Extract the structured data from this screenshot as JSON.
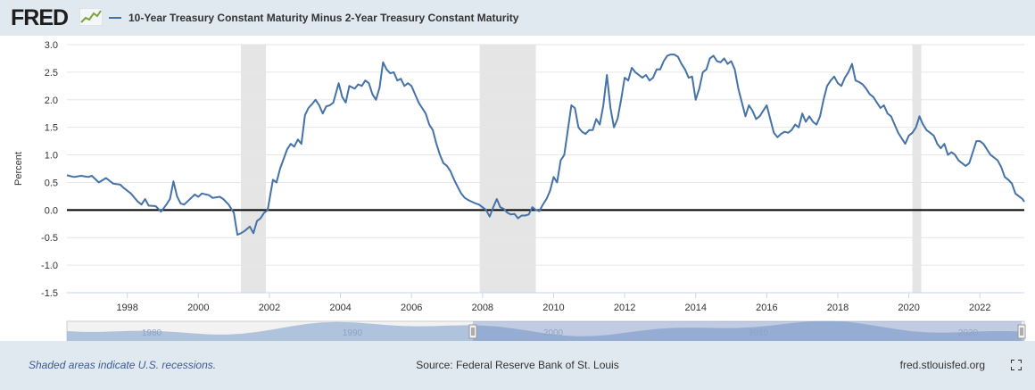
{
  "header": {
    "logo_text": "FRED",
    "logo_icon": "line-chart-icon"
  },
  "footer": {
    "recession_note": "Shaded areas indicate U.S. recessions.",
    "source": "Source: Federal Reserve Bank of St. Louis",
    "url": "fred.stlouisfed.org",
    "fullscreen_icon": "fullscreen-icon"
  },
  "colors": {
    "series": "#4572a7",
    "recession": "#e5e5e5",
    "zero_line": "#000000",
    "navigator_fill": "#9fb7d6"
  },
  "chart_data": {
    "type": "line",
    "title": "",
    "xlabel": "",
    "ylabel": "Percent",
    "ylim": [
      -1.5,
      3.0
    ],
    "yticks": [
      3.0,
      2.5,
      2.0,
      1.5,
      1.0,
      0.5,
      0.0,
      -0.5,
      -1.0,
      -1.5
    ],
    "xticks": [
      1998,
      2000,
      2002,
      2004,
      2006,
      2008,
      2010,
      2012,
      2014,
      2016,
      2018,
      2020,
      2022
    ],
    "xlim": [
      1996.3,
      2023.25
    ],
    "legend_position": "top-left",
    "grid": true,
    "recessions": [
      [
        2001.2,
        2001.9
      ],
      [
        2007.92,
        2009.5
      ],
      [
        2020.1,
        2020.35
      ]
    ],
    "navigator_labels": [
      "1980",
      "1990",
      "2000",
      "2010",
      "2020"
    ],
    "series": [
      {
        "name": "10-Year Treasury Constant Maturity Minus 2-Year Treasury Constant Maturity",
        "points": [
          [
            1996.3,
            0.63
          ],
          [
            1996.5,
            0.6
          ],
          [
            1996.7,
            0.62
          ],
          [
            1996.9,
            0.6
          ],
          [
            1997.0,
            0.62
          ],
          [
            1997.2,
            0.5
          ],
          [
            1997.4,
            0.58
          ],
          [
            1997.6,
            0.48
          ],
          [
            1997.8,
            0.46
          ],
          [
            1997.9,
            0.4
          ],
          [
            1998.1,
            0.3
          ],
          [
            1998.3,
            0.15
          ],
          [
            1998.4,
            0.1
          ],
          [
            1998.5,
            0.2
          ],
          [
            1998.6,
            0.08
          ],
          [
            1998.8,
            0.07
          ],
          [
            1998.95,
            -0.03
          ],
          [
            1999.1,
            0.1
          ],
          [
            1999.2,
            0.2
          ],
          [
            1999.3,
            0.52
          ],
          [
            1999.4,
            0.25
          ],
          [
            1999.5,
            0.12
          ],
          [
            1999.6,
            0.1
          ],
          [
            1999.8,
            0.22
          ],
          [
            1999.9,
            0.28
          ],
          [
            2000.0,
            0.24
          ],
          [
            2000.1,
            0.3
          ],
          [
            2000.3,
            0.27
          ],
          [
            2000.4,
            0.22
          ],
          [
            2000.6,
            0.24
          ],
          [
            2000.7,
            0.2
          ],
          [
            2000.85,
            0.1
          ],
          [
            2001.0,
            -0.05
          ],
          [
            2001.1,
            -0.45
          ],
          [
            2001.2,
            -0.42
          ],
          [
            2001.3,
            -0.38
          ],
          [
            2001.45,
            -0.3
          ],
          [
            2001.55,
            -0.42
          ],
          [
            2001.65,
            -0.2
          ],
          [
            2001.75,
            -0.15
          ],
          [
            2001.85,
            -0.05
          ],
          [
            2001.95,
            0.0
          ],
          [
            2002.1,
            0.55
          ],
          [
            2002.2,
            0.5
          ],
          [
            2002.3,
            0.75
          ],
          [
            2002.5,
            1.1
          ],
          [
            2002.6,
            1.2
          ],
          [
            2002.7,
            1.15
          ],
          [
            2002.8,
            1.28
          ],
          [
            2002.9,
            1.2
          ],
          [
            2003.0,
            1.72
          ],
          [
            2003.1,
            1.85
          ],
          [
            2003.2,
            1.92
          ],
          [
            2003.3,
            2.0
          ],
          [
            2003.4,
            1.9
          ],
          [
            2003.5,
            1.75
          ],
          [
            2003.6,
            1.88
          ],
          [
            2003.7,
            1.9
          ],
          [
            2003.8,
            1.95
          ],
          [
            2003.95,
            2.3
          ],
          [
            2004.05,
            2.05
          ],
          [
            2004.15,
            1.95
          ],
          [
            2004.25,
            2.25
          ],
          [
            2004.4,
            2.2
          ],
          [
            2004.5,
            2.28
          ],
          [
            2004.6,
            2.25
          ],
          [
            2004.7,
            2.35
          ],
          [
            2004.8,
            2.3
          ],
          [
            2004.9,
            2.1
          ],
          [
            2005.0,
            2.0
          ],
          [
            2005.1,
            2.22
          ],
          [
            2005.2,
            2.68
          ],
          [
            2005.3,
            2.55
          ],
          [
            2005.4,
            2.48
          ],
          [
            2005.5,
            2.5
          ],
          [
            2005.6,
            2.35
          ],
          [
            2005.7,
            2.38
          ],
          [
            2005.8,
            2.25
          ],
          [
            2005.9,
            2.3
          ],
          [
            2006.0,
            2.25
          ],
          [
            2006.1,
            2.1
          ],
          [
            2006.2,
            1.95
          ],
          [
            2006.3,
            1.85
          ],
          [
            2006.4,
            1.75
          ],
          [
            2006.5,
            1.55
          ],
          [
            2006.6,
            1.45
          ],
          [
            2006.7,
            1.2
          ],
          [
            2006.8,
            1.0
          ],
          [
            2006.9,
            0.85
          ],
          [
            2007.0,
            0.8
          ],
          [
            2007.1,
            0.7
          ],
          [
            2007.2,
            0.55
          ],
          [
            2007.3,
            0.42
          ],
          [
            2007.4,
            0.3
          ],
          [
            2007.5,
            0.22
          ],
          [
            2007.6,
            0.18
          ],
          [
            2007.7,
            0.15
          ],
          [
            2007.8,
            0.12
          ],
          [
            2007.9,
            0.1
          ],
          [
            2008.0,
            0.05
          ],
          [
            2008.1,
            0.0
          ],
          [
            2008.2,
            -0.12
          ],
          [
            2008.3,
            0.05
          ],
          [
            2008.4,
            0.2
          ],
          [
            2008.5,
            0.05
          ],
          [
            2008.6,
            0.02
          ],
          [
            2008.7,
            -0.05
          ],
          [
            2008.8,
            -0.08
          ],
          [
            2008.9,
            -0.07
          ],
          [
            2009.0,
            -0.15
          ],
          [
            2009.1,
            -0.1
          ],
          [
            2009.2,
            -0.1
          ],
          [
            2009.3,
            -0.08
          ],
          [
            2009.4,
            0.05
          ],
          [
            2009.5,
            0.0
          ],
          [
            2009.6,
            -0.02
          ],
          [
            2009.7,
            0.1
          ],
          [
            2009.8,
            0.2
          ],
          [
            2009.9,
            0.35
          ],
          [
            2010.0,
            0.6
          ],
          [
            2010.1,
            0.5
          ],
          [
            2010.2,
            0.9
          ],
          [
            2010.3,
            1.0
          ],
          [
            2010.4,
            1.45
          ],
          [
            2010.5,
            1.9
          ],
          [
            2010.6,
            1.85
          ],
          [
            2010.7,
            1.5
          ],
          [
            2010.8,
            1.42
          ],
          [
            2010.9,
            1.38
          ],
          [
            2011.0,
            1.45
          ],
          [
            2011.1,
            1.45
          ],
          [
            2011.2,
            1.65
          ],
          [
            2011.3,
            1.55
          ],
          [
            2011.4,
            1.9
          ],
          [
            2011.5,
            2.45
          ],
          [
            2011.6,
            1.85
          ],
          [
            2011.7,
            1.5
          ],
          [
            2011.8,
            1.65
          ],
          [
            2011.9,
            2.0
          ],
          [
            2012.0,
            2.4
          ],
          [
            2012.1,
            2.35
          ],
          [
            2012.2,
            2.58
          ],
          [
            2012.3,
            2.5
          ],
          [
            2012.4,
            2.45
          ],
          [
            2012.5,
            2.4
          ],
          [
            2012.6,
            2.45
          ],
          [
            2012.7,
            2.35
          ],
          [
            2012.8,
            2.4
          ],
          [
            2012.9,
            2.55
          ],
          [
            2013.0,
            2.55
          ],
          [
            2013.1,
            2.7
          ],
          [
            2013.2,
            2.8
          ],
          [
            2013.3,
            2.82
          ],
          [
            2013.4,
            2.82
          ],
          [
            2013.5,
            2.78
          ],
          [
            2013.6,
            2.65
          ],
          [
            2013.7,
            2.55
          ],
          [
            2013.8,
            2.4
          ],
          [
            2013.9,
            2.42
          ],
          [
            2014.0,
            2.0
          ],
          [
            2014.1,
            2.2
          ],
          [
            2014.2,
            2.5
          ],
          [
            2014.3,
            2.55
          ],
          [
            2014.4,
            2.75
          ],
          [
            2014.5,
            2.8
          ],
          [
            2014.6,
            2.7
          ],
          [
            2014.7,
            2.68
          ],
          [
            2014.8,
            2.75
          ],
          [
            2014.9,
            2.65
          ],
          [
            2015.0,
            2.7
          ],
          [
            2015.1,
            2.55
          ],
          [
            2015.2,
            2.2
          ],
          [
            2015.3,
            1.95
          ],
          [
            2015.4,
            1.7
          ],
          [
            2015.5,
            1.9
          ],
          [
            2015.6,
            1.8
          ],
          [
            2015.7,
            1.65
          ],
          [
            2015.8,
            1.7
          ],
          [
            2015.9,
            1.8
          ],
          [
            2016.0,
            1.9
          ],
          [
            2016.1,
            1.65
          ],
          [
            2016.2,
            1.4
          ],
          [
            2016.3,
            1.32
          ],
          [
            2016.4,
            1.38
          ],
          [
            2016.5,
            1.42
          ],
          [
            2016.6,
            1.4
          ],
          [
            2016.7,
            1.45
          ],
          [
            2016.8,
            1.55
          ],
          [
            2016.9,
            1.5
          ],
          [
            2017.0,
            1.75
          ],
          [
            2017.1,
            1.6
          ],
          [
            2017.2,
            1.7
          ],
          [
            2017.3,
            1.6
          ],
          [
            2017.4,
            1.55
          ],
          [
            2017.5,
            1.7
          ],
          [
            2017.6,
            2.0
          ],
          [
            2017.7,
            2.25
          ],
          [
            2017.8,
            2.35
          ],
          [
            2017.9,
            2.42
          ],
          [
            2018.0,
            2.3
          ],
          [
            2018.1,
            2.25
          ],
          [
            2018.2,
            2.4
          ],
          [
            2018.3,
            2.5
          ],
          [
            2018.4,
            2.65
          ],
          [
            2018.5,
            2.35
          ],
          [
            2018.6,
            2.32
          ],
          [
            2018.7,
            2.28
          ],
          [
            2018.8,
            2.2
          ],
          [
            2018.9,
            2.1
          ],
          [
            2019.0,
            2.05
          ],
          [
            2019.1,
            1.95
          ],
          [
            2019.2,
            1.85
          ],
          [
            2019.3,
            1.9
          ],
          [
            2019.4,
            1.75
          ],
          [
            2019.5,
            1.7
          ],
          [
            2019.6,
            1.55
          ],
          [
            2019.7,
            1.4
          ],
          [
            2019.8,
            1.3
          ],
          [
            2019.9,
            1.2
          ],
          [
            2020.0,
            1.35
          ],
          [
            2020.1,
            1.4
          ],
          [
            2020.2,
            1.5
          ],
          [
            2020.3,
            1.7
          ],
          [
            2020.4,
            1.55
          ],
          [
            2020.5,
            1.45
          ],
          [
            2020.6,
            1.4
          ],
          [
            2020.7,
            1.35
          ],
          [
            2020.8,
            1.2
          ],
          [
            2020.9,
            1.12
          ],
          [
            2021.0,
            1.2
          ],
          [
            2021.1,
            1.0
          ],
          [
            2021.2,
            1.05
          ],
          [
            2021.3,
            1.0
          ],
          [
            2021.4,
            0.9
          ],
          [
            2021.5,
            0.85
          ],
          [
            2021.6,
            0.8
          ],
          [
            2021.7,
            0.85
          ],
          [
            2021.8,
            1.05
          ],
          [
            2021.9,
            1.25
          ],
          [
            2022.0,
            1.25
          ],
          [
            2022.1,
            1.2
          ],
          [
            2022.2,
            1.1
          ],
          [
            2022.3,
            1.0
          ],
          [
            2022.4,
            0.95
          ],
          [
            2022.5,
            0.9
          ],
          [
            2022.6,
            0.78
          ],
          [
            2022.7,
            0.6
          ],
          [
            2022.8,
            0.55
          ],
          [
            2022.9,
            0.48
          ],
          [
            2023.0,
            0.3
          ],
          [
            2023.1,
            0.25
          ],
          [
            2023.2,
            0.2
          ],
          [
            2023.25,
            0.15
          ]
        ]
      }
    ]
  }
}
